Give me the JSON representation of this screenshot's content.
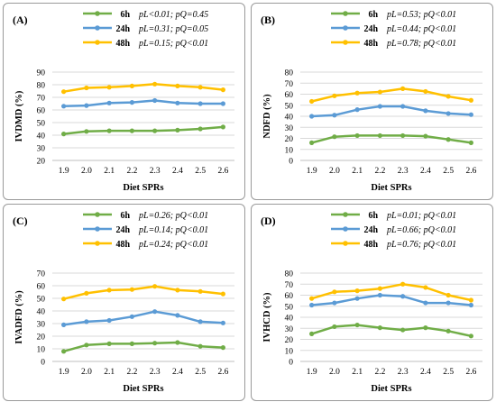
{
  "colors": {
    "6h": "#70ad47",
    "24h": "#5b9bd5",
    "48h": "#ffc000",
    "grid": "#d9d9d9",
    "axis": "#bfbfbf"
  },
  "chart_data": [
    {
      "type": "line",
      "panel_label": "(A)",
      "ylabel": "IVDMD (%)",
      "xlabel": "Diet SPRs",
      "categories": [
        "1.9",
        "2.0",
        "2.1",
        "2.2",
        "2.3",
        "2.4",
        "2.5",
        "2.6"
      ],
      "ylim": [
        20,
        90
      ],
      "yticks": [
        "20",
        "30",
        "40",
        "50",
        "60",
        "70",
        "80",
        "90"
      ],
      "grid": true,
      "legend_position": "top",
      "series": [
        {
          "name": "6h",
          "stats": "pL<0.01; pQ=0.45",
          "color": "#70ad47",
          "values": [
            41,
            43,
            43.5,
            43.5,
            43.5,
            44,
            45,
            46.5
          ]
        },
        {
          "name": "24h",
          "stats": "pL=0.31; pQ=0.05",
          "color": "#5b9bd5",
          "values": [
            63,
            63.5,
            65.5,
            66,
            67.5,
            65.5,
            65,
            65
          ]
        },
        {
          "name": "48h",
          "stats": "pL=0.15; pQ<0.01",
          "color": "#ffc000",
          "values": [
            74.5,
            77.5,
            78,
            79,
            80.5,
            79,
            78,
            76
          ]
        }
      ]
    },
    {
      "type": "line",
      "panel_label": "(B)",
      "ylabel": "NDFD (%)",
      "xlabel": "Diet SPRs",
      "categories": [
        "1.9",
        "2.0",
        "2.1",
        "2.2",
        "2.3",
        "2.4",
        "2.5",
        "2.6"
      ],
      "ylim": [
        0,
        80
      ],
      "yticks": [
        "0",
        "10",
        "20",
        "30",
        "40",
        "50",
        "60",
        "70",
        "80"
      ],
      "grid": true,
      "legend_position": "top",
      "series": [
        {
          "name": "6h",
          "stats": "pL=0.53; pQ<0.01",
          "color": "#70ad47",
          "values": [
            16,
            21.5,
            22.5,
            22.5,
            22.5,
            22,
            19,
            16
          ]
        },
        {
          "name": "24h",
          "stats": "pL=0.44; pQ<0.01",
          "color": "#5b9bd5",
          "values": [
            40,
            41,
            46,
            49,
            49,
            45,
            42.5,
            41.5
          ]
        },
        {
          "name": "48h",
          "stats": "pL=0.78; pQ<0.01",
          "color": "#ffc000",
          "values": [
            53.5,
            58.5,
            61,
            62,
            65,
            62.5,
            58,
            54.5
          ]
        }
      ]
    },
    {
      "type": "line",
      "panel_label": "(C)",
      "ylabel": "IVADFD (%)",
      "xlabel": "Diet SPRs",
      "categories": [
        "1.9",
        "2.0",
        "2.1",
        "2.2",
        "2.3",
        "2.4",
        "2.5",
        "2.6"
      ],
      "ylim": [
        0,
        70
      ],
      "yticks": [
        "0",
        "10",
        "20",
        "30",
        "40",
        "50",
        "60",
        "70"
      ],
      "grid": true,
      "legend_position": "top",
      "series": [
        {
          "name": "6h",
          "stats": "pL=0.26; pQ<0.01",
          "color": "#70ad47",
          "values": [
            8,
            13,
            14,
            14,
            14.5,
            15,
            12,
            11
          ]
        },
        {
          "name": "24h",
          "stats": "pL=0.14; pQ<0.01",
          "color": "#5b9bd5",
          "values": [
            29,
            31.5,
            32.5,
            35.5,
            39.5,
            36.5,
            31.5,
            30.5
          ]
        },
        {
          "name": "48h",
          "stats": "pL=0.24; pQ<0.01",
          "color": "#ffc000",
          "values": [
            49.5,
            54,
            56.5,
            57,
            59.5,
            56.5,
            55.5,
            53.5
          ]
        }
      ]
    },
    {
      "type": "line",
      "panel_label": "(D)",
      "ylabel": "IVHCD (%)",
      "xlabel": "Diet SPRs",
      "categories": [
        "1.9",
        "2.0",
        "2.1",
        "2.2",
        "2.3",
        "2.4",
        "2.5",
        "2.6"
      ],
      "ylim": [
        0,
        80
      ],
      "yticks": [
        "0",
        "10",
        "20",
        "30",
        "40",
        "50",
        "60",
        "70",
        "80"
      ],
      "grid": true,
      "legend_position": "top",
      "series": [
        {
          "name": "6h",
          "stats": "pL=0.01; pQ<0.01",
          "color": "#70ad47",
          "values": [
            25,
            31.5,
            33,
            30.5,
            28.5,
            30.5,
            27.5,
            23
          ]
        },
        {
          "name": "24h",
          "stats": "pL=0.66; pQ<0.01",
          "color": "#5b9bd5",
          "values": [
            51,
            53,
            57,
            60,
            59,
            53,
            53,
            51
          ]
        },
        {
          "name": "48h",
          "stats": "pL=0.76; pQ<0.01",
          "color": "#ffc000",
          "values": [
            57,
            63,
            64,
            66,
            70,
            67,
            60,
            55.5
          ]
        }
      ]
    }
  ]
}
